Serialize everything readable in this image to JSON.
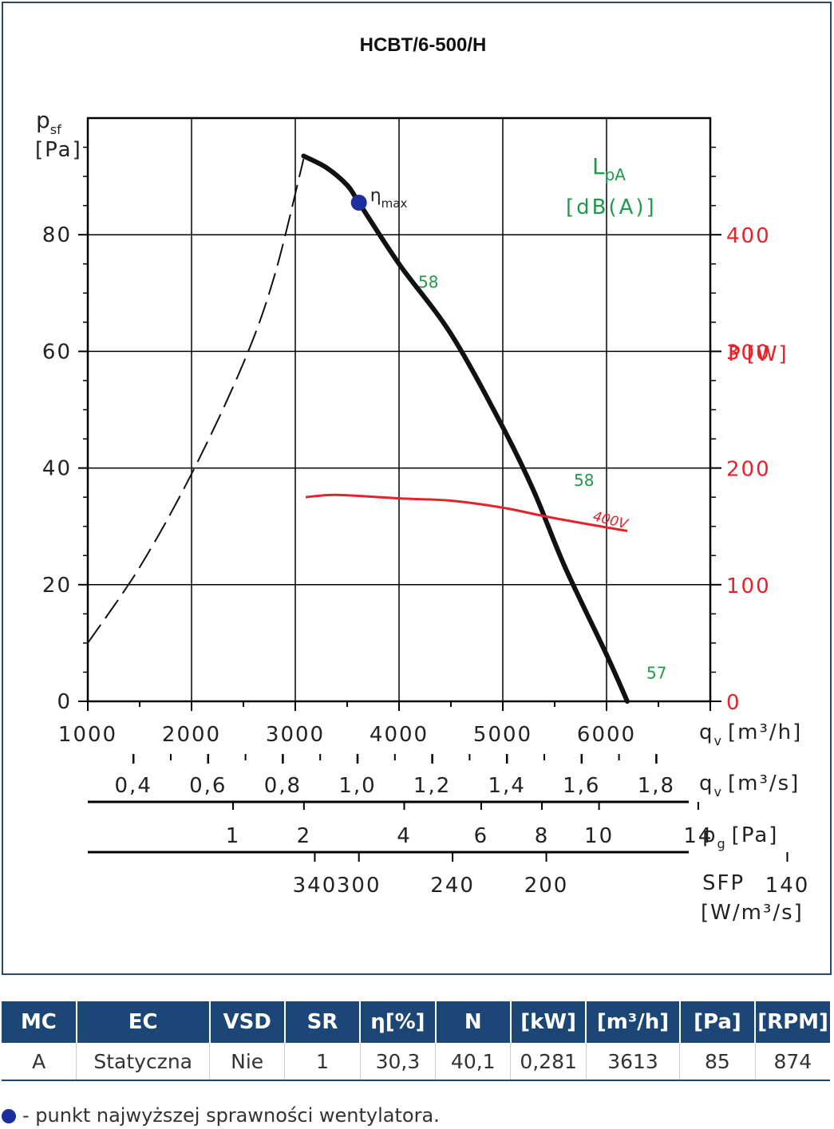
{
  "chart_data": {
    "type": "line",
    "title": "HCBT/6-500/H",
    "y_axis": {
      "label_main": "p",
      "label_sub": "sf",
      "unit": "[Pa]",
      "range": [
        0,
        100
      ],
      "ticks": [
        "0",
        "20",
        "40",
        "60",
        "80"
      ]
    },
    "y2_axis": {
      "label_main": "P",
      "unit": "[W]",
      "color": "#e8202a",
      "range": [
        0,
        500
      ],
      "ticks": [
        "0",
        "100",
        "200",
        "300",
        "400"
      ]
    },
    "x_axis": {
      "label_main": "q",
      "label_sub": "v",
      "unit": "[m³/h]",
      "range": [
        1000,
        7000
      ],
      "ticks": [
        "1000",
        "2000",
        "3000",
        "4000",
        "5000",
        "6000"
      ]
    },
    "secondary_scales": {
      "qv_m3s": {
        "label_main": "q",
        "label_sub": "v",
        "unit": "[m³/s]",
        "ticks": [
          {
            "label": "0,4",
            "value": 0.4
          },
          {
            "label": "0,6",
            "value": 0.6
          },
          {
            "label": "0,8",
            "value": 0.8
          },
          {
            "label": "1,0",
            "value": 1.0
          },
          {
            "label": "1,2",
            "value": 1.2
          },
          {
            "label": "1,4",
            "value": 1.4
          },
          {
            "label": "1,6",
            "value": 1.6
          },
          {
            "label": "1,8",
            "value": 1.8
          }
        ]
      },
      "pg": {
        "label_main": "p",
        "label_sub": "g",
        "unit": "[Pa]",
        "ticks": [
          {
            "label": "1",
            "value": 1
          },
          {
            "label": "2",
            "value": 2
          },
          {
            "label": "4",
            "value": 4
          },
          {
            "label": "6",
            "value": 6
          },
          {
            "label": "8",
            "value": 8
          },
          {
            "label": "10",
            "value": 10
          },
          {
            "label": "14",
            "value": 14
          }
        ]
      },
      "sfp": {
        "label_main": "SFP",
        "unit": "[W/m³/s]",
        "ticks": [
          {
            "label": "340",
            "value": 340
          },
          {
            "label": "300",
            "value": 300
          },
          {
            "label": "240",
            "value": 240
          },
          {
            "label": "200",
            "value": 200
          },
          {
            "label": "140",
            "value": 140
          }
        ]
      }
    },
    "sound_label": {
      "main": "L",
      "sub": "pA",
      "unit": "[dB(A)]"
    },
    "series": [
      {
        "kind": "fan-curve-stall",
        "style": "dashed",
        "points": [
          [
            1000,
            10
          ],
          [
            1500,
            23
          ],
          [
            2000,
            39
          ],
          [
            2500,
            58
          ],
          [
            2800,
            73
          ],
          [
            3080,
            93
          ]
        ]
      },
      {
        "kind": "fan-curve",
        "points": [
          [
            3080,
            93.5
          ],
          [
            3300,
            91.5
          ],
          [
            3500,
            88.5
          ],
          [
            3613,
            85.5
          ],
          [
            4000,
            75
          ],
          [
            4500,
            63
          ],
          [
            5000,
            47
          ],
          [
            5300,
            36
          ],
          [
            5600,
            23
          ],
          [
            6000,
            8
          ],
          [
            6200,
            0
          ]
        ]
      },
      {
        "name": "400V",
        "axis": "y2",
        "color": "#e8202a",
        "points": [
          [
            3100,
            175
          ],
          [
            3400,
            177
          ],
          [
            4000,
            174
          ],
          [
            4500,
            172
          ],
          [
            5000,
            166
          ],
          [
            5500,
            157
          ],
          [
            6200,
            146
          ]
        ]
      }
    ],
    "sound_levels": [
      {
        "x": 4000,
        "y": 72,
        "label": "58"
      },
      {
        "x": 5500,
        "y": 38,
        "label": "58"
      },
      {
        "x": 6200,
        "y": 5,
        "label": "57"
      }
    ],
    "max_efficiency": {
      "x": 3613,
      "y": 85.5,
      "label": "η",
      "label_sub": "max",
      "color": "#1c2d9c"
    },
    "grid": true
  },
  "table": {
    "headers": [
      "MC",
      "EC",
      "VSD",
      "SR",
      "η[%]",
      "N",
      "[kW]",
      "[m³/h]",
      "[Pa]",
      "[RPM]"
    ],
    "rows": [
      [
        "A",
        "Statyczna",
        "Nie",
        "1",
        "30,3",
        "40,1",
        "0,281",
        "3613",
        "85",
        "874"
      ]
    ]
  },
  "legend_note": "- punkt najwyższej sprawności wentylatora."
}
